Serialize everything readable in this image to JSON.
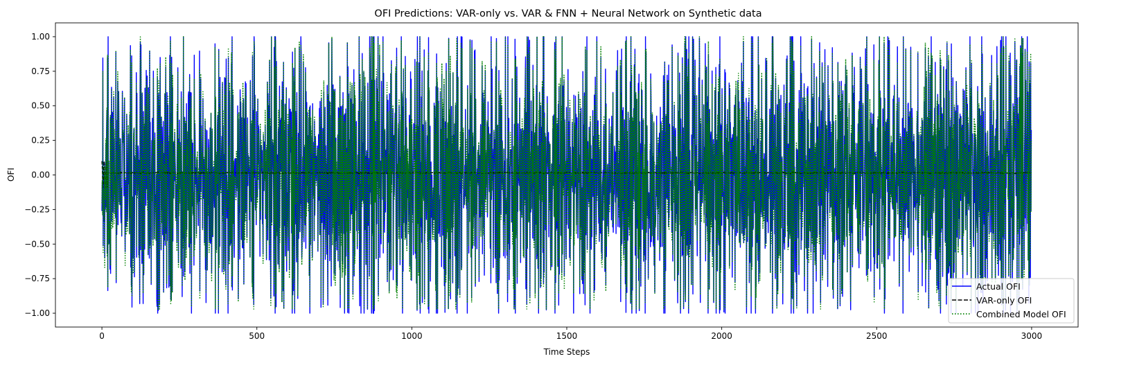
{
  "chart_data": {
    "type": "line",
    "title": "OFI Predictions: VAR-only vs. VAR & FNN + Neural Network on Synthetic data",
    "xlabel": "Time Steps",
    "ylabel": "OFI",
    "xlim": [
      -150,
      3150
    ],
    "ylim": [
      -1.1,
      1.1
    ],
    "x_ticks": [
      0,
      500,
      1000,
      1500,
      2000,
      2500,
      3000
    ],
    "y_ticks": [
      -1.0,
      -0.75,
      -0.5,
      -0.25,
      0.0,
      0.25,
      0.5,
      0.75,
      1.0
    ],
    "x_tick_labels": [
      "0",
      "500",
      "1000",
      "1500",
      "2000",
      "2500",
      "3000"
    ],
    "y_tick_labels": [
      "−1.00",
      "−0.75",
      "−0.50",
      "−0.25",
      "0.00",
      "0.25",
      "0.50",
      "0.75",
      "1.00"
    ],
    "n_points": 3000,
    "grid": false,
    "legend_position": "lower-right",
    "series": [
      {
        "name": "Actual OFI",
        "color": "#0000ff",
        "style": "solid",
        "range": [
          -1.0,
          1.0
        ]
      },
      {
        "name": "VAR-only OFI",
        "color": "#000000",
        "style": "dashed",
        "range": [
          -0.02,
          0.12
        ]
      },
      {
        "name": "Combined Model OFI",
        "color": "#008000",
        "style": "dotted",
        "range": [
          -0.97,
          1.0
        ]
      }
    ]
  }
}
